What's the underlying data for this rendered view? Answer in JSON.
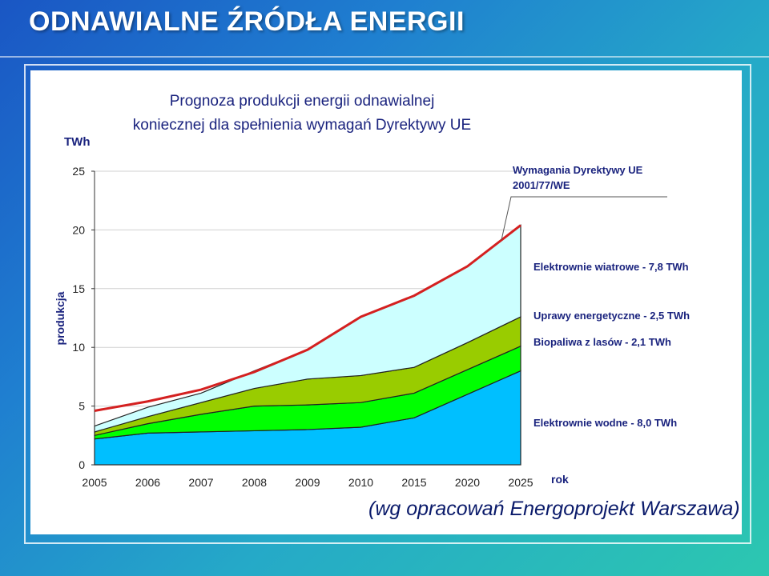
{
  "slide": {
    "title": "ODNAWIALNE ŹRÓDŁA ENERGII",
    "source_note": "(wg opracowań Energoprojekt Warszawa)"
  },
  "chart_data": {
    "type": "area",
    "title_lines": [
      "Prognoza produkcji energii odnawialnej",
      "koniecznej dla spełnienia wymagań Dyrektywy UE"
    ],
    "y_unit": "TWh",
    "ylabel": "produkcja",
    "xlabel": "rok",
    "ylim": [
      0,
      25
    ],
    "yticks": [
      "0",
      "5",
      "10",
      "15",
      "20",
      "25"
    ],
    "x": [
      "2005",
      "2006",
      "2007",
      "2008",
      "2009",
      "2010",
      "2015",
      "2020",
      "2025"
    ],
    "stacked": true,
    "series": [
      {
        "name": "Elektrownie wodne - 8,0 TWh",
        "color": "#00bfff",
        "values": [
          2.2,
          2.7,
          2.8,
          2.9,
          3.0,
          3.2,
          4.0,
          6.0,
          8.0
        ]
      },
      {
        "name": "Biopaliwa z lasów - 2,1 TWh",
        "color": "#00ff00",
        "values": [
          0.3,
          0.8,
          1.5,
          2.1,
          2.1,
          2.1,
          2.1,
          2.1,
          2.1
        ]
      },
      {
        "name": "Uprawy energetyczne - 2,5 TWh",
        "color": "#99cc00",
        "values": [
          0.3,
          0.6,
          1.0,
          1.5,
          2.2,
          2.3,
          2.2,
          2.3,
          2.5
        ]
      },
      {
        "name": "Elektrownie wiatrowe - 7,8 TWh",
        "color": "#ccffff",
        "values": [
          0.5,
          0.8,
          0.8,
          1.5,
          2.5,
          5.0,
          6.1,
          6.5,
          7.8
        ]
      }
    ],
    "directive_line": {
      "label_lines": [
        "Wymagania Dyrektywy UE",
        "2001/77/WE"
      ],
      "color": "#d42020",
      "values": [
        4.6,
        5.4,
        6.4,
        7.9,
        9.8,
        12.6,
        14.4,
        16.9,
        20.4
      ]
    }
  }
}
